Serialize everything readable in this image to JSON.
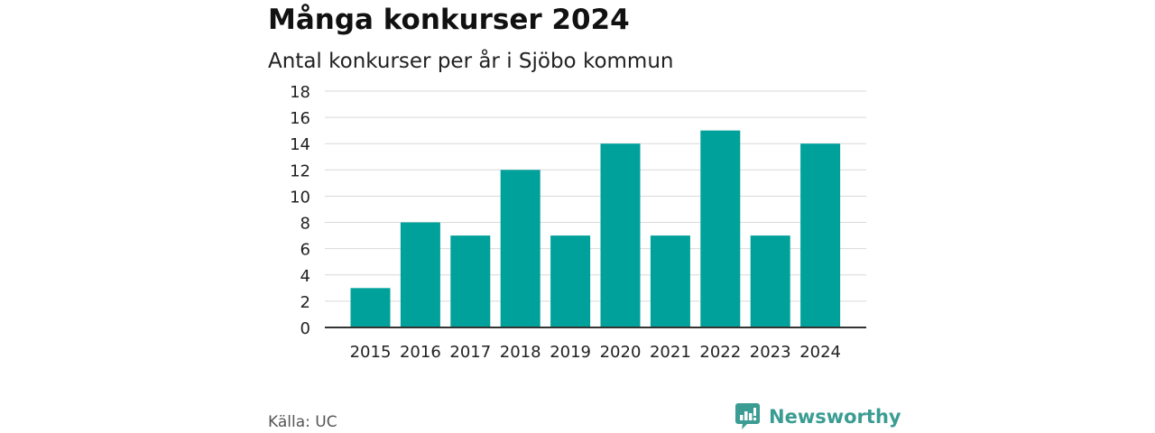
{
  "header": {
    "title": "Många konkurser 2024",
    "subtitle": "Antal konkurser per år i Sjöbo kommun"
  },
  "footer": {
    "source": "Källa: UC",
    "brand": "Newsworthy"
  },
  "colors": {
    "bar": "#00a19a",
    "grid": "#d9d9d9",
    "axis": "#333333",
    "brand": "#3a9c92"
  },
  "chart_data": {
    "type": "bar",
    "title": "Många konkurser 2024",
    "subtitle": "Antal konkurser per år i Sjöbo kommun",
    "categories": [
      "2015",
      "2016",
      "2017",
      "2018",
      "2019",
      "2020",
      "2021",
      "2022",
      "2023",
      "2024"
    ],
    "values": [
      3,
      8,
      7,
      12,
      7,
      14,
      7,
      15,
      7,
      14
    ],
    "ylim": [
      0,
      18
    ],
    "yticks": [
      0,
      2,
      4,
      6,
      8,
      10,
      12,
      14,
      16,
      18
    ],
    "xlabel": "",
    "ylabel": "",
    "grid": true,
    "legend": "none"
  }
}
